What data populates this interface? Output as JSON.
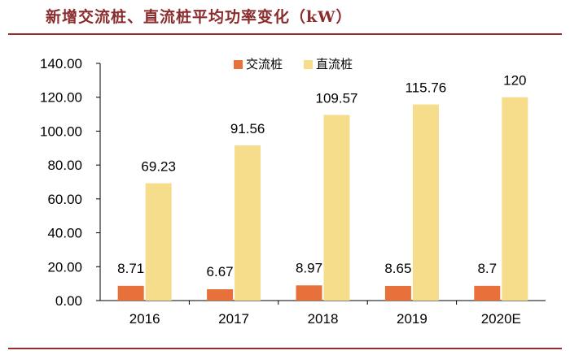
{
  "title": "新增交流桩、直流桩平均功率变化（kW）",
  "colors": {
    "title": "#8b2c2c",
    "rule": "#9b2b2b",
    "ac": "#e8703a",
    "dc": "#f5dd8c",
    "axis": "#000000"
  },
  "chart_data": {
    "type": "bar",
    "categories": [
      "2016",
      "2017",
      "2018",
      "2019",
      "2020E"
    ],
    "series": [
      {
        "name": "交流桩",
        "values": [
          8.71,
          6.67,
          8.97,
          8.65,
          8.7
        ],
        "labels": [
          "8.71",
          "6.67",
          "8.97",
          "8.65",
          "8.7"
        ]
      },
      {
        "name": "直流桩",
        "values": [
          69.23,
          91.56,
          109.57,
          115.76,
          120
        ],
        "labels": [
          "69.23",
          "91.56",
          "109.57",
          "115.76",
          "120"
        ]
      }
    ],
    "yticks": [
      "0.00",
      "20.00",
      "40.00",
      "60.00",
      "80.00",
      "100.00",
      "120.00",
      "140.00"
    ],
    "ylim": [
      0,
      140
    ],
    "legend": "top-center",
    "grid": false
  }
}
